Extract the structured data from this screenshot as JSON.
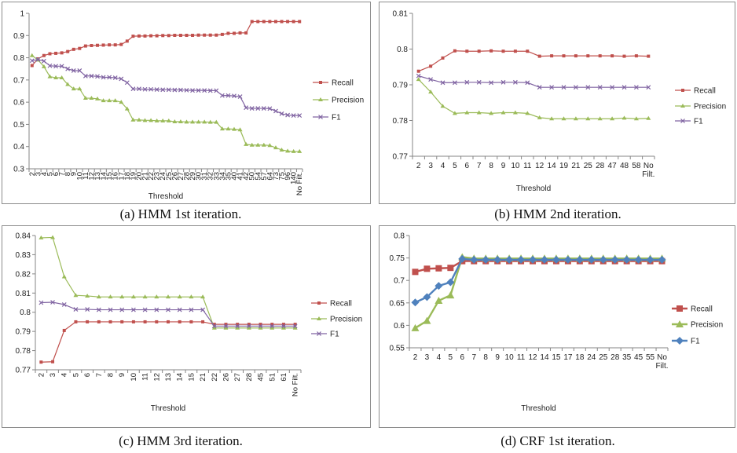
{
  "chart_data": [
    {
      "type": "line",
      "caption": "(a)  HMM 1st iteration.",
      "xlabel": "Threshold",
      "ylim": [
        0.3,
        1
      ],
      "yticks": [
        "0.3",
        "0.4",
        "0.5",
        "0.6",
        "0.7",
        "0.8",
        "0.9",
        "1"
      ],
      "categories": [
        "2",
        "3",
        "4",
        "5",
        "6",
        "7",
        "8",
        "9",
        "10",
        "11",
        "12",
        "13",
        "14",
        "15",
        "16",
        "17",
        "18",
        "19",
        "20",
        "21",
        "22",
        "23",
        "24",
        "25",
        "26",
        "27",
        "28",
        "29",
        "30",
        "31",
        "32",
        "33",
        "34",
        "35",
        "40",
        "41",
        "42",
        "50",
        "54",
        "57",
        "64",
        "73",
        "75",
        "96",
        "140",
        "No Filt."
      ],
      "series": [
        {
          "name": "Recall",
          "color": "#c0504d",
          "marker": "square",
          "values": [
            0.765,
            0.795,
            0.81,
            0.818,
            0.82,
            0.822,
            0.828,
            0.838,
            0.842,
            0.853,
            0.855,
            0.856,
            0.857,
            0.858,
            0.858,
            0.86,
            0.875,
            0.897,
            0.898,
            0.898,
            0.899,
            0.899,
            0.9,
            0.9,
            0.901,
            0.901,
            0.901,
            0.901,
            0.902,
            0.902,
            0.902,
            0.902,
            0.905,
            0.91,
            0.91,
            0.912,
            0.912,
            0.963,
            0.963,
            0.963,
            0.963,
            0.963,
            0.963,
            0.963,
            0.963,
            0.963
          ]
        },
        {
          "name": "Precision",
          "color": "#9bbb59",
          "marker": "triangle",
          "values": [
            0.81,
            0.79,
            0.76,
            0.715,
            0.71,
            0.71,
            0.68,
            0.66,
            0.66,
            0.618,
            0.618,
            0.615,
            0.607,
            0.607,
            0.607,
            0.6,
            0.57,
            0.52,
            0.52,
            0.518,
            0.518,
            0.516,
            0.516,
            0.516,
            0.512,
            0.512,
            0.511,
            0.511,
            0.511,
            0.511,
            0.51,
            0.51,
            0.48,
            0.48,
            0.478,
            0.476,
            0.41,
            0.407,
            0.407,
            0.407,
            0.405,
            0.395,
            0.385,
            0.38,
            0.378,
            0.378
          ]
        },
        {
          "name": "F1",
          "color": "#8064a2",
          "marker": "x",
          "values": [
            0.787,
            0.792,
            0.785,
            0.764,
            0.762,
            0.762,
            0.75,
            0.742,
            0.742,
            0.718,
            0.718,
            0.716,
            0.712,
            0.712,
            0.71,
            0.705,
            0.688,
            0.66,
            0.66,
            0.658,
            0.658,
            0.657,
            0.656,
            0.656,
            0.655,
            0.655,
            0.654,
            0.653,
            0.653,
            0.653,
            0.652,
            0.652,
            0.63,
            0.63,
            0.628,
            0.625,
            0.575,
            0.572,
            0.572,
            0.572,
            0.571,
            0.56,
            0.548,
            0.542,
            0.54,
            0.54
          ]
        }
      ]
    },
    {
      "type": "line",
      "caption": "(b)  HMM 2nd iteration.",
      "xlabel": "Threshold",
      "ylim": [
        0.77,
        0.81
      ],
      "yticks": [
        "0.77",
        "0.78",
        "0.79",
        "0.8",
        "0.81"
      ],
      "categories": [
        "2",
        "3",
        "4",
        "5",
        "6",
        "7",
        "8",
        "9",
        "10",
        "11",
        "12",
        "14",
        "19",
        "21",
        "25",
        "28",
        "47",
        "48",
        "58",
        "No Filt."
      ],
      "series": [
        {
          "name": "Recall",
          "color": "#c0504d",
          "marker": "square",
          "values": [
            0.7938,
            0.7952,
            0.7975,
            0.7995,
            0.7994,
            0.7994,
            0.7995,
            0.7994,
            0.7994,
            0.7994,
            0.798,
            0.7981,
            0.7981,
            0.7981,
            0.7981,
            0.7981,
            0.7981,
            0.798,
            0.7981,
            0.798
          ]
        },
        {
          "name": "Precision",
          "color": "#9bbb59",
          "marker": "triangle",
          "values": [
            0.7915,
            0.788,
            0.784,
            0.782,
            0.7822,
            0.7822,
            0.782,
            0.7822,
            0.7822,
            0.782,
            0.7808,
            0.7805,
            0.7805,
            0.7805,
            0.7805,
            0.7805,
            0.7805,
            0.7807,
            0.7805,
            0.7806
          ]
        },
        {
          "name": "F1",
          "color": "#8064a2",
          "marker": "x",
          "values": [
            0.7925,
            0.7915,
            0.7906,
            0.7906,
            0.7907,
            0.7907,
            0.7906,
            0.7907,
            0.7907,
            0.7906,
            0.7893,
            0.7893,
            0.7893,
            0.7893,
            0.7893,
            0.7893,
            0.7893,
            0.7893,
            0.7893,
            0.7893
          ]
        }
      ]
    },
    {
      "type": "line",
      "caption": "(c)  HMM 3rd iteration.",
      "xlabel": "Threshold",
      "ylim": [
        0.77,
        0.84
      ],
      "yticks": [
        "0.77",
        "0.78",
        "0.79",
        "0.8",
        "0.81",
        "0.82",
        "0.83",
        "0.84"
      ],
      "categories": [
        "2",
        "3",
        "4",
        "5",
        "6",
        "7",
        "8",
        "9",
        "10",
        "11",
        "12",
        "13",
        "14",
        "15",
        "21",
        "22",
        "26",
        "27",
        "28",
        "45",
        "51",
        "61",
        "No Filt."
      ],
      "series": [
        {
          "name": "Recall",
          "color": "#c0504d",
          "marker": "square",
          "values": [
            0.774,
            0.7742,
            0.7905,
            0.795,
            0.795,
            0.795,
            0.795,
            0.795,
            0.795,
            0.795,
            0.795,
            0.795,
            0.795,
            0.795,
            0.795,
            0.7937,
            0.7937,
            0.7937,
            0.7937,
            0.7937,
            0.7937,
            0.7937,
            0.7937
          ]
        },
        {
          "name": "Precision",
          "color": "#9bbb59",
          "marker": "triangle",
          "values": [
            0.8388,
            0.839,
            0.8185,
            0.8088,
            0.8085,
            0.808,
            0.808,
            0.808,
            0.808,
            0.808,
            0.808,
            0.808,
            0.808,
            0.808,
            0.808,
            0.7918,
            0.7918,
            0.7918,
            0.7918,
            0.7918,
            0.7918,
            0.7918,
            0.7918
          ]
        },
        {
          "name": "F1",
          "color": "#8064a2",
          "marker": "x",
          "values": [
            0.805,
            0.8052,
            0.804,
            0.8015,
            0.8015,
            0.8013,
            0.8013,
            0.8013,
            0.8013,
            0.8013,
            0.8013,
            0.8013,
            0.8013,
            0.8013,
            0.8013,
            0.7928,
            0.7928,
            0.7928,
            0.7928,
            0.7928,
            0.7928,
            0.7928,
            0.7928
          ]
        }
      ]
    },
    {
      "type": "line",
      "caption": "(d)  CRF 1st iteration.",
      "xlabel": "Threshold",
      "ylim": [
        0.55,
        0.8
      ],
      "yticks": [
        "0.55",
        "0.6",
        "0.65",
        "0.7",
        "0.75",
        "0.8"
      ],
      "categories": [
        "2",
        "3",
        "4",
        "5",
        "6",
        "7",
        "8",
        "9",
        "10",
        "11",
        "12",
        "14",
        "15",
        "17",
        "18",
        "24",
        "25",
        "28",
        "35",
        "45",
        "55",
        "No Filt."
      ],
      "series": [
        {
          "name": "Recall",
          "color": "#c0504d",
          "marker": "bigsquare",
          "values": [
            0.719,
            0.726,
            0.727,
            0.728,
            0.743,
            0.743,
            0.743,
            0.743,
            0.743,
            0.743,
            0.743,
            0.743,
            0.743,
            0.743,
            0.743,
            0.743,
            0.743,
            0.743,
            0.743,
            0.743,
            0.743,
            0.743
          ]
        },
        {
          "name": "Precision",
          "color": "#9bbb59",
          "marker": "bigtriangle",
          "values": [
            0.594,
            0.61,
            0.655,
            0.667,
            0.752,
            0.749,
            0.749,
            0.749,
            0.749,
            0.749,
            0.749,
            0.749,
            0.749,
            0.749,
            0.749,
            0.749,
            0.749,
            0.749,
            0.749,
            0.749,
            0.749,
            0.749
          ]
        },
        {
          "name": "F1",
          "color": "#4f81bd",
          "marker": "diamond",
          "values": [
            0.651,
            0.663,
            0.688,
            0.696,
            0.748,
            0.746,
            0.746,
            0.746,
            0.746,
            0.746,
            0.746,
            0.746,
            0.746,
            0.746,
            0.746,
            0.746,
            0.746,
            0.746,
            0.746,
            0.746,
            0.746,
            0.746
          ]
        }
      ]
    }
  ]
}
